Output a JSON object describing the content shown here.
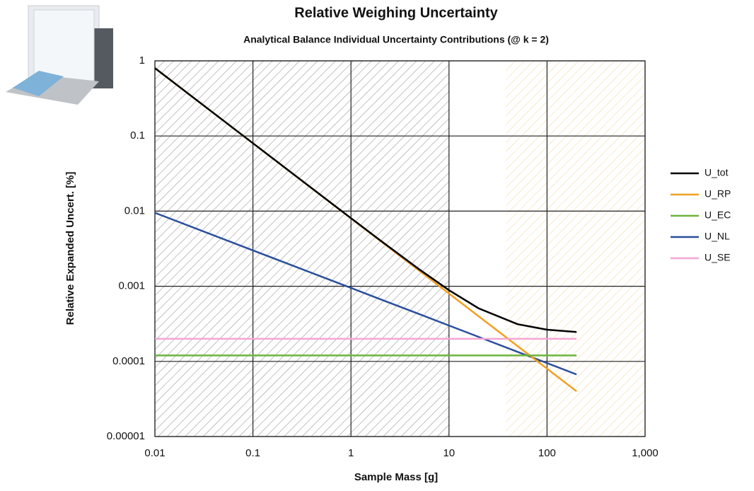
{
  "chart_data": {
    "type": "line",
    "title": "Relative Weighing Uncertainty",
    "subtitle": "Analytical Balance Individual Uncertainty Contributions (@ k = 2)",
    "x_label": "Sample Mass [g]",
    "y_label": "Relative Expanded Uncert. [%]",
    "x": [
      0.01,
      0.1,
      1,
      2,
      5,
      10,
      20,
      50,
      100,
      200
    ],
    "series": [
      {
        "name": "U_tot",
        "color": "#000000",
        "values": [
          0.8,
          0.0801,
          0.00806,
          0.00406,
          0.00167,
          0.000886,
          0.000509,
          0.000313,
          0.000264,
          0.000246
        ]
      },
      {
        "name": "U_RP",
        "color": "#f0a020",
        "values": [
          0.8,
          0.08,
          0.008,
          0.004,
          0.0016,
          0.0008,
          0.0004,
          0.00016,
          8e-05,
          4e-05
        ]
      },
      {
        "name": "U_EC",
        "color": "#6cb43c",
        "values": [
          0.00012,
          0.00012,
          0.00012,
          0.00012,
          0.00012,
          0.00012,
          0.00012,
          0.00012,
          0.00012,
          0.00012
        ]
      },
      {
        "name": "U_NL",
        "color": "#2a4f9c",
        "values": [
          0.0095,
          0.003,
          0.00095,
          0.00067,
          0.000425,
          0.0003,
          0.000212,
          0.000134,
          9.5e-05,
          6.7e-05
        ]
      },
      {
        "name": "U_SE",
        "color": "#f4a6d4",
        "values": [
          0.0002,
          0.0002,
          0.0002,
          0.0002,
          0.0002,
          0.0002,
          0.0002,
          0.0002,
          0.0002,
          0.0002
        ]
      }
    ],
    "shaded_ranges": [
      {
        "from": 0.01,
        "to": 10,
        "color": "#999999"
      },
      {
        "from": 38,
        "to": 1000,
        "color": "#f7d9a8"
      }
    ],
    "xscale": "log",
    "yscale": "log",
    "xlim": [
      0.01,
      1000
    ],
    "ylim": [
      1e-05,
      1
    ],
    "xticks": [
      0.01,
      0.1,
      1,
      10,
      100,
      {
        "value": 1000,
        "label": "1,000"
      }
    ],
    "yticks": [
      1e-05,
      0.0001,
      0.001,
      0.01,
      0.1,
      1
    ],
    "grid": true,
    "legend": "right"
  }
}
